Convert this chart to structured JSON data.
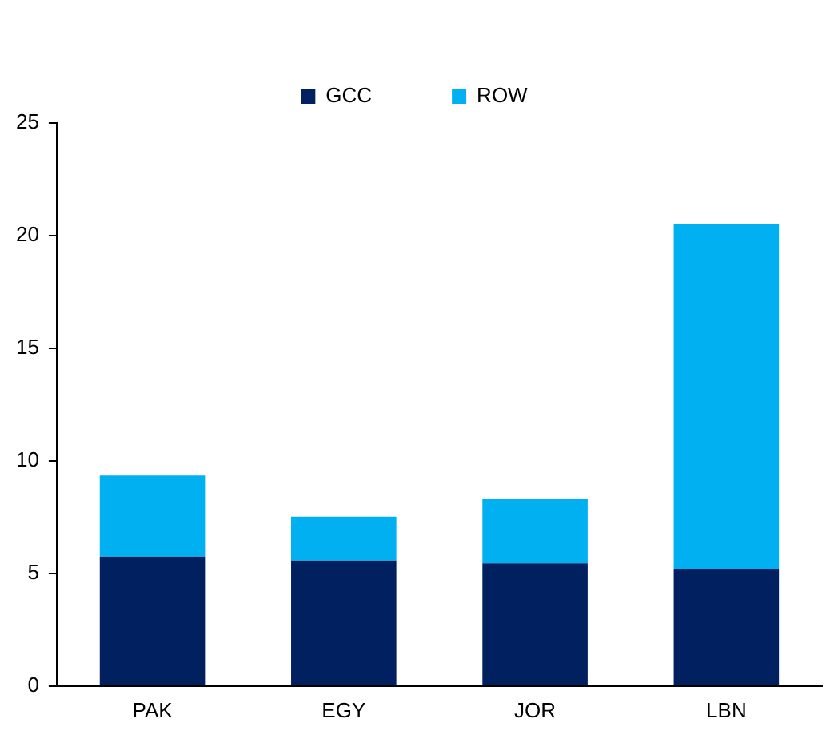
{
  "chart_data": {
    "type": "bar",
    "stacked": true,
    "categories": [
      "PAK",
      "EGY",
      "JOR",
      "LBN"
    ],
    "series": [
      {
        "name": "GCC",
        "color": "#002060",
        "values": [
          5.75,
          5.57,
          5.45,
          5.21
        ]
      },
      {
        "name": "ROW",
        "color": "#00b0f0",
        "values": [
          3.6,
          1.95,
          2.85,
          15.3
        ]
      }
    ],
    "ylim": [
      0,
      25
    ],
    "yticks": [
      0,
      5,
      10,
      15,
      20,
      25
    ],
    "grid": false,
    "legend": "top"
  }
}
